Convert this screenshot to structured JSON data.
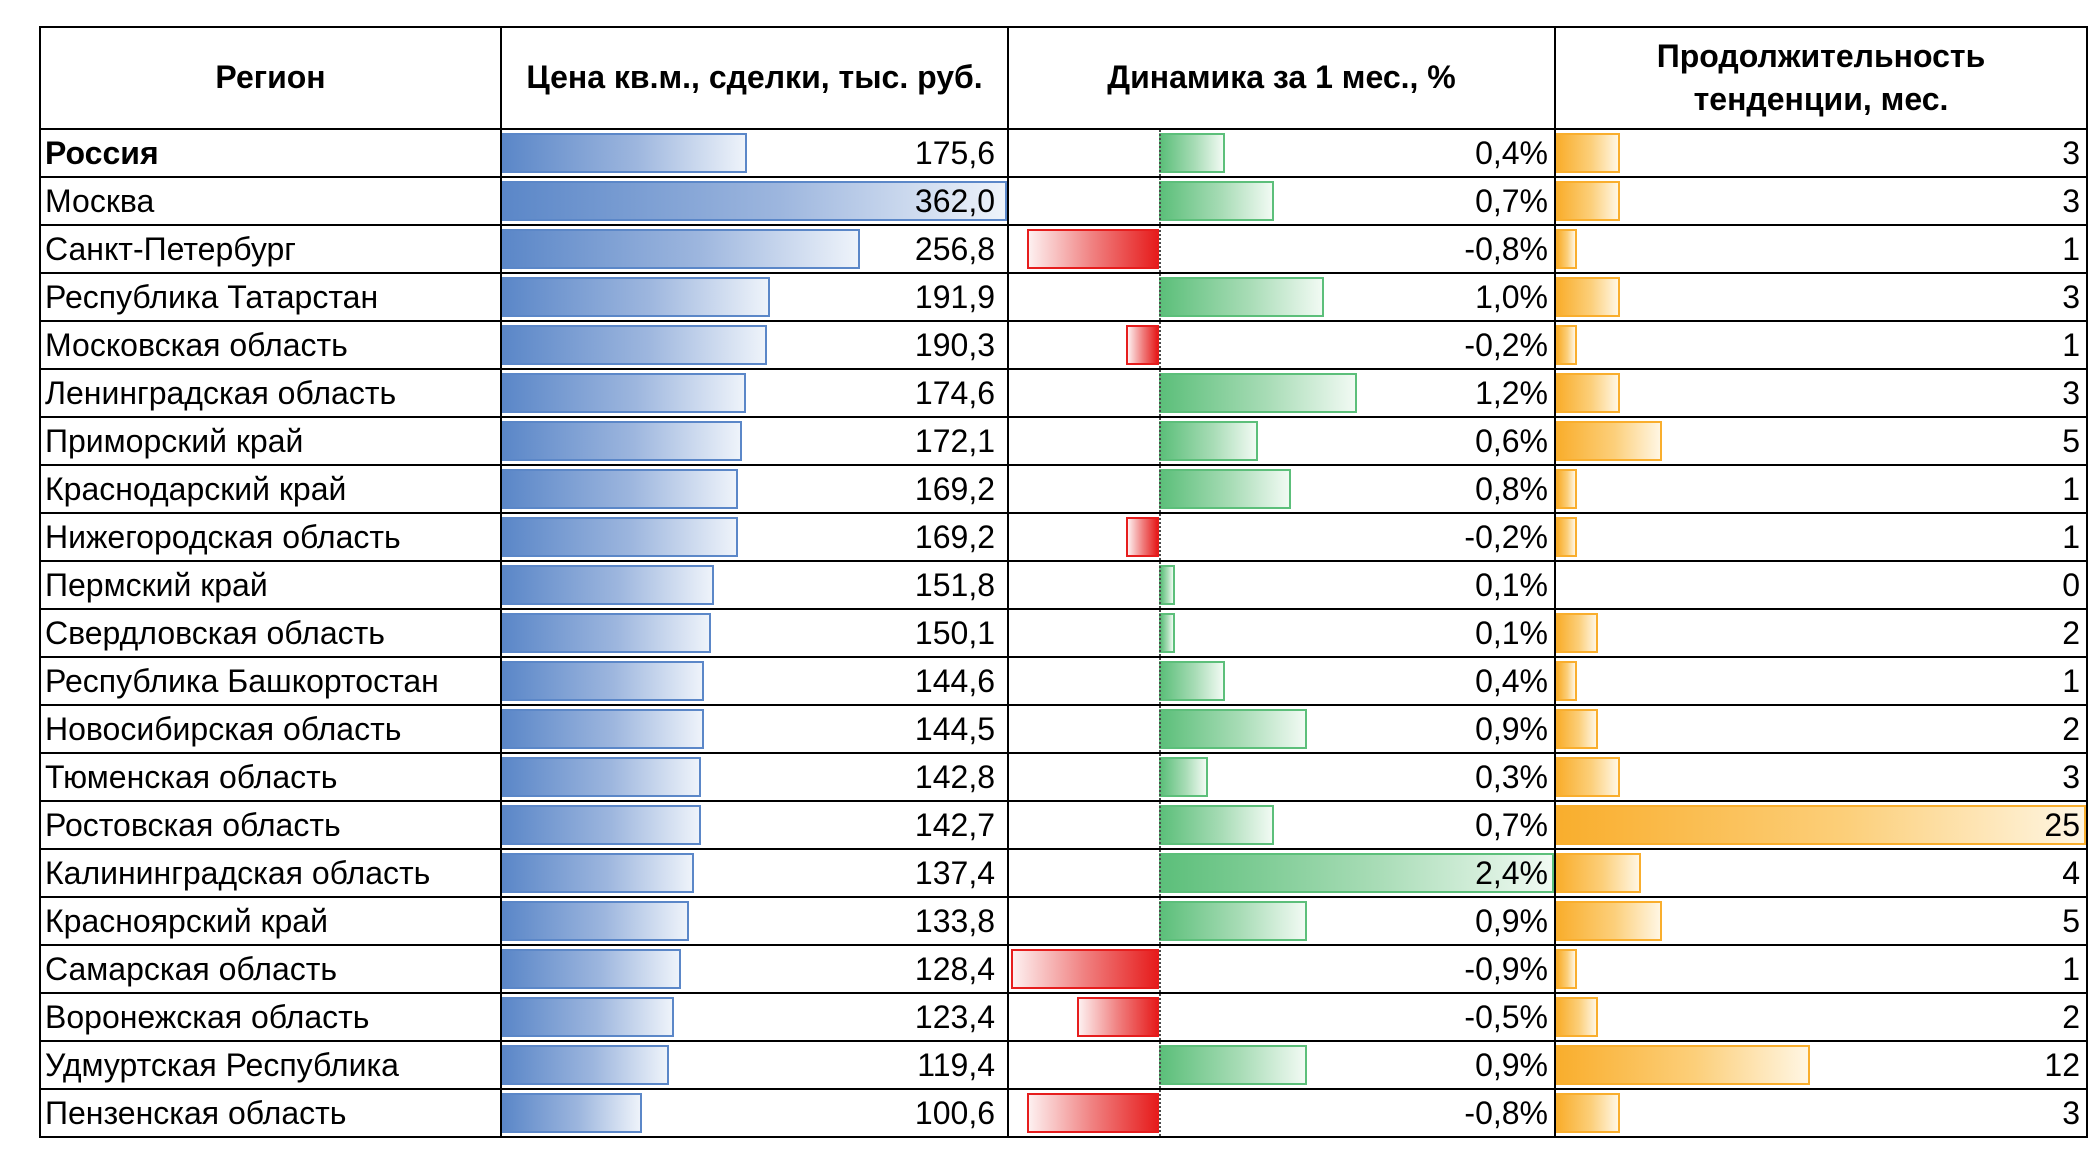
{
  "chart_data": {
    "type": "table",
    "headers": {
      "region": "Регион",
      "price": "Цена кв.м., сделки, тыс. руб.",
      "dynamics": "Динамика за 1 мес., %",
      "duration_line1": "Продолжительность",
      "duration_line2": "тенденции, мес."
    },
    "colors": {
      "price_bar": "#5b87c8",
      "dynamics_positive_bar": "#5cbf7a",
      "dynamics_negative_bar": "#e61d1d",
      "duration_bar": "#f9ae2d"
    },
    "rows": [
      {
        "region": "Россия",
        "bold": true,
        "price": 175.6,
        "price_label": "175,6",
        "dynamics": 0.4,
        "dynamics_label": "0,4%",
        "duration": 3,
        "duration_label": "3"
      },
      {
        "region": "Москва",
        "price": 362.0,
        "price_label": "362,0",
        "dynamics": 0.7,
        "dynamics_label": "0,7%",
        "duration": 3,
        "duration_label": "3"
      },
      {
        "region": "Санкт-Петербург",
        "price": 256.8,
        "price_label": "256,8",
        "dynamics": -0.8,
        "dynamics_label": "-0,8%",
        "duration": 1,
        "duration_label": "1"
      },
      {
        "region": "Республика Татарстан",
        "price": 191.9,
        "price_label": "191,9",
        "dynamics": 1.0,
        "dynamics_label": "1,0%",
        "duration": 3,
        "duration_label": "3"
      },
      {
        "region": "Московская область",
        "price": 190.3,
        "price_label": "190,3",
        "dynamics": -0.2,
        "dynamics_label": "-0,2%",
        "duration": 1,
        "duration_label": "1"
      },
      {
        "region": "Ленинградская область",
        "price": 174.6,
        "price_label": "174,6",
        "dynamics": 1.2,
        "dynamics_label": "1,2%",
        "duration": 3,
        "duration_label": "3"
      },
      {
        "region": "Приморский край",
        "price": 172.1,
        "price_label": "172,1",
        "dynamics": 0.6,
        "dynamics_label": "0,6%",
        "duration": 5,
        "duration_label": "5"
      },
      {
        "region": "Краснодарский край",
        "price": 169.2,
        "price_label": "169,2",
        "dynamics": 0.8,
        "dynamics_label": "0,8%",
        "duration": 1,
        "duration_label": "1"
      },
      {
        "region": "Нижегородская область",
        "price": 169.2,
        "price_label": "169,2",
        "dynamics": -0.2,
        "dynamics_label": "-0,2%",
        "duration": 1,
        "duration_label": "1"
      },
      {
        "region": "Пермский край",
        "price": 151.8,
        "price_label": "151,8",
        "dynamics": 0.1,
        "dynamics_label": "0,1%",
        "duration": 0,
        "duration_label": "0"
      },
      {
        "region": "Свердловская область",
        "price": 150.1,
        "price_label": "150,1",
        "dynamics": 0.1,
        "dynamics_label": "0,1%",
        "duration": 2,
        "duration_label": "2"
      },
      {
        "region": "Республика Башкортостан",
        "price": 144.6,
        "price_label": "144,6",
        "dynamics": 0.4,
        "dynamics_label": "0,4%",
        "duration": 1,
        "duration_label": "1"
      },
      {
        "region": "Новосибирская область",
        "price": 144.5,
        "price_label": "144,5",
        "dynamics": 0.9,
        "dynamics_label": "0,9%",
        "duration": 2,
        "duration_label": "2"
      },
      {
        "region": "Тюменская область",
        "price": 142.8,
        "price_label": "142,8",
        "dynamics": 0.3,
        "dynamics_label": "0,3%",
        "duration": 3,
        "duration_label": "3"
      },
      {
        "region": "Ростовская область",
        "price": 142.7,
        "price_label": "142,7",
        "dynamics": 0.7,
        "dynamics_label": "0,7%",
        "duration": 25,
        "duration_label": "25"
      },
      {
        "region": "Калининградская область",
        "price": 137.4,
        "price_label": "137,4",
        "dynamics": 2.4,
        "dynamics_label": "2,4%",
        "duration": 4,
        "duration_label": "4"
      },
      {
        "region": "Красноярский край",
        "price": 133.8,
        "price_label": "133,8",
        "dynamics": 0.9,
        "dynamics_label": "0,9%",
        "duration": 5,
        "duration_label": "5"
      },
      {
        "region": "Самарская область",
        "price": 128.4,
        "price_label": "128,4",
        "dynamics": -0.9,
        "dynamics_label": "-0,9%",
        "duration": 1,
        "duration_label": "1"
      },
      {
        "region": "Воронежская область",
        "price": 123.4,
        "price_label": "123,4",
        "dynamics": -0.5,
        "dynamics_label": "-0,5%",
        "duration": 2,
        "duration_label": "2"
      },
      {
        "region": "Удмуртская Республика",
        "price": 119.4,
        "price_label": "119,4",
        "dynamics": 0.9,
        "dynamics_label": "0,9%",
        "duration": 12,
        "duration_label": "12"
      },
      {
        "region": "Пензенская область",
        "price": 100.6,
        "price_label": "100,6",
        "dynamics": -0.8,
        "dynamics_label": "-0,8%",
        "duration": 3,
        "duration_label": "3"
      }
    ]
  }
}
